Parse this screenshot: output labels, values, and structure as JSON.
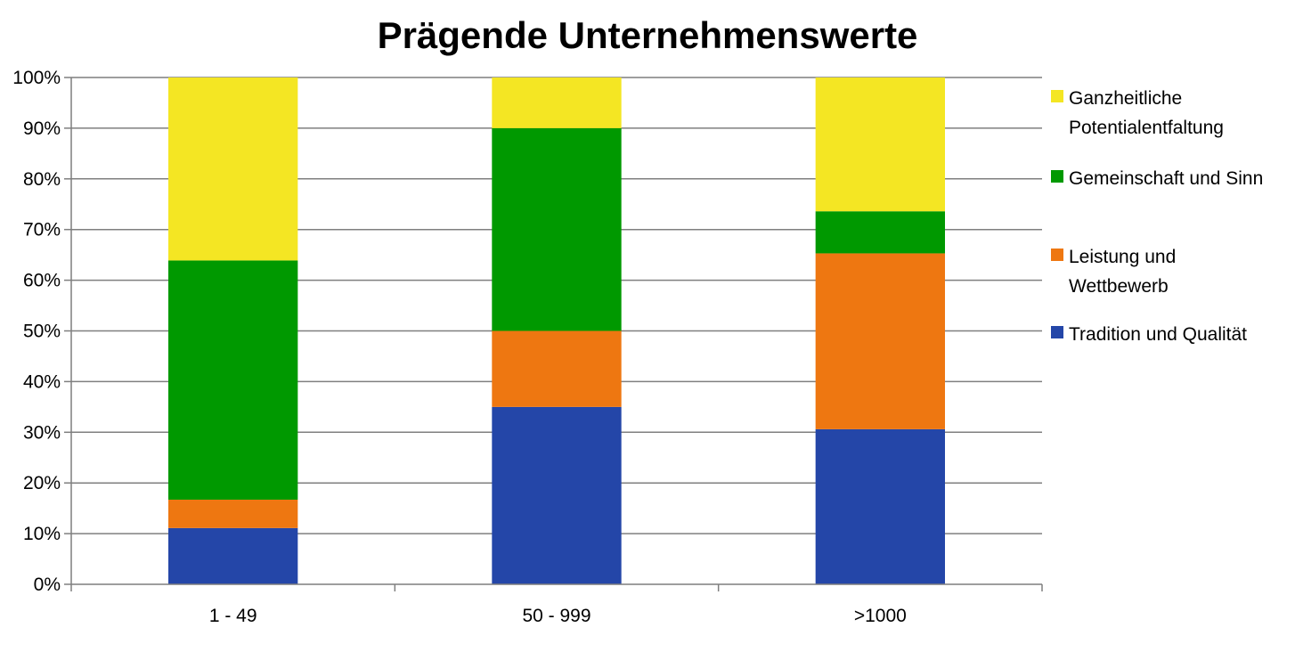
{
  "chart_data": {
    "type": "bar",
    "stacked": true,
    "title": "Prägende Unternehmenswerte",
    "categories": [
      "1 - 49",
      "50 - 999",
      ">1000"
    ],
    "y_ticks": [
      "0%",
      "10%",
      "20%",
      "30%",
      "40%",
      "50%",
      "60%",
      "70%",
      "80%",
      "90%",
      "100%"
    ],
    "ylim": [
      0,
      100
    ],
    "grid": true,
    "legend_position": "right",
    "series": [
      {
        "name": "Tradition und Qualität",
        "legend_lines": [
          "Tradition und Qualität"
        ],
        "color": "#2446A8",
        "values": [
          11.1,
          35.0,
          30.6
        ]
      },
      {
        "name": "Leistung und Wettbewerb",
        "legend_lines": [
          "Leistung und",
          "Wettbewerb"
        ],
        "color": "#EE7711",
        "values": [
          5.6,
          15.0,
          34.7
        ]
      },
      {
        "name": "Gemeinschaft und Sinn",
        "legend_lines": [
          "Gemeinschaft und Sinn"
        ],
        "color": "#009900",
        "values": [
          47.2,
          40.0,
          8.3
        ]
      },
      {
        "name": "Ganzheitliche Potentialentfaltung",
        "legend_lines": [
          "Ganzheitliche",
          "Potentialentfaltung"
        ],
        "color": "#F4E623",
        "values": [
          36.1,
          10.0,
          26.4
        ]
      }
    ]
  }
}
